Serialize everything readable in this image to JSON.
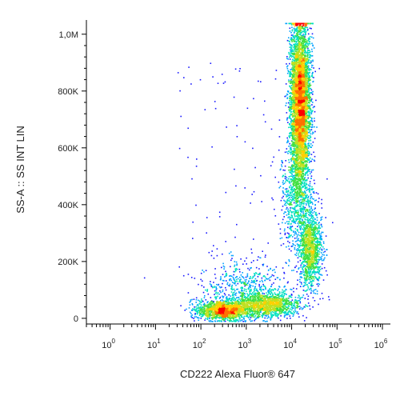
{
  "chart_data": {
    "type": "scatter",
    "style": "flow-cytometry density dot plot",
    "xlabel": "CD222 Alexa Fluor® 647",
    "ylabel": "SS-A :: SS INT LIN",
    "x_scale": "log",
    "y_scale": "linear",
    "xlim": [
      0.3,
      1500000
    ],
    "ylim": [
      -20000,
      1050000
    ],
    "x_ticks": [
      {
        "value": 1,
        "base": "10",
        "exp": "0"
      },
      {
        "value": 10,
        "base": "10",
        "exp": "1"
      },
      {
        "value": 100,
        "base": "10",
        "exp": "2"
      },
      {
        "value": 1000,
        "base": "10",
        "exp": "3"
      },
      {
        "value": 10000,
        "base": "10",
        "exp": "4"
      },
      {
        "value": 100000,
        "base": "10",
        "exp": "5"
      },
      {
        "value": 1000000,
        "base": "10",
        "exp": "6"
      }
    ],
    "y_ticks": [
      {
        "value": 0,
        "label": "0"
      },
      {
        "value": 200000,
        "label": "200K"
      },
      {
        "value": 400000,
        "label": "400K"
      },
      {
        "value": 600000,
        "label": "600K"
      },
      {
        "value": 800000,
        "label": "800K"
      },
      {
        "value": 1000000,
        "label": "1,0M"
      }
    ],
    "populations": [
      {
        "x_center": 300,
        "y_center": 30000,
        "x_spread_decades": 0.28,
        "y_spread": 18000,
        "count": 1500
      },
      {
        "x_center": 3000,
        "y_center": 50000,
        "x_spread_decades": 0.35,
        "y_spread": 22000,
        "count": 1300
      },
      {
        "x_center": 15000,
        "y_center": 760000,
        "x_spread_decades": 0.11,
        "y_spread": 150000,
        "count": 5000
      },
      {
        "x_center": 25000,
        "y_center": 250000,
        "x_spread_decades": 0.13,
        "y_spread": 70000,
        "count": 1300
      },
      {
        "x_center": 800,
        "y_center": 110000,
        "x_spread_decades": 0.45,
        "y_spread": 45000,
        "count": 500
      },
      {
        "x_center": 12000,
        "y_center": 420000,
        "x_spread_decades": 0.18,
        "y_spread": 90000,
        "count": 600
      }
    ],
    "density_colors": [
      "#1a1aff",
      "#00a0ff",
      "#00e0c0",
      "#40e040",
      "#c0e020",
      "#ffd000",
      "#ff7000",
      "#ff0000"
    ],
    "grid": false,
    "legend": "none"
  }
}
